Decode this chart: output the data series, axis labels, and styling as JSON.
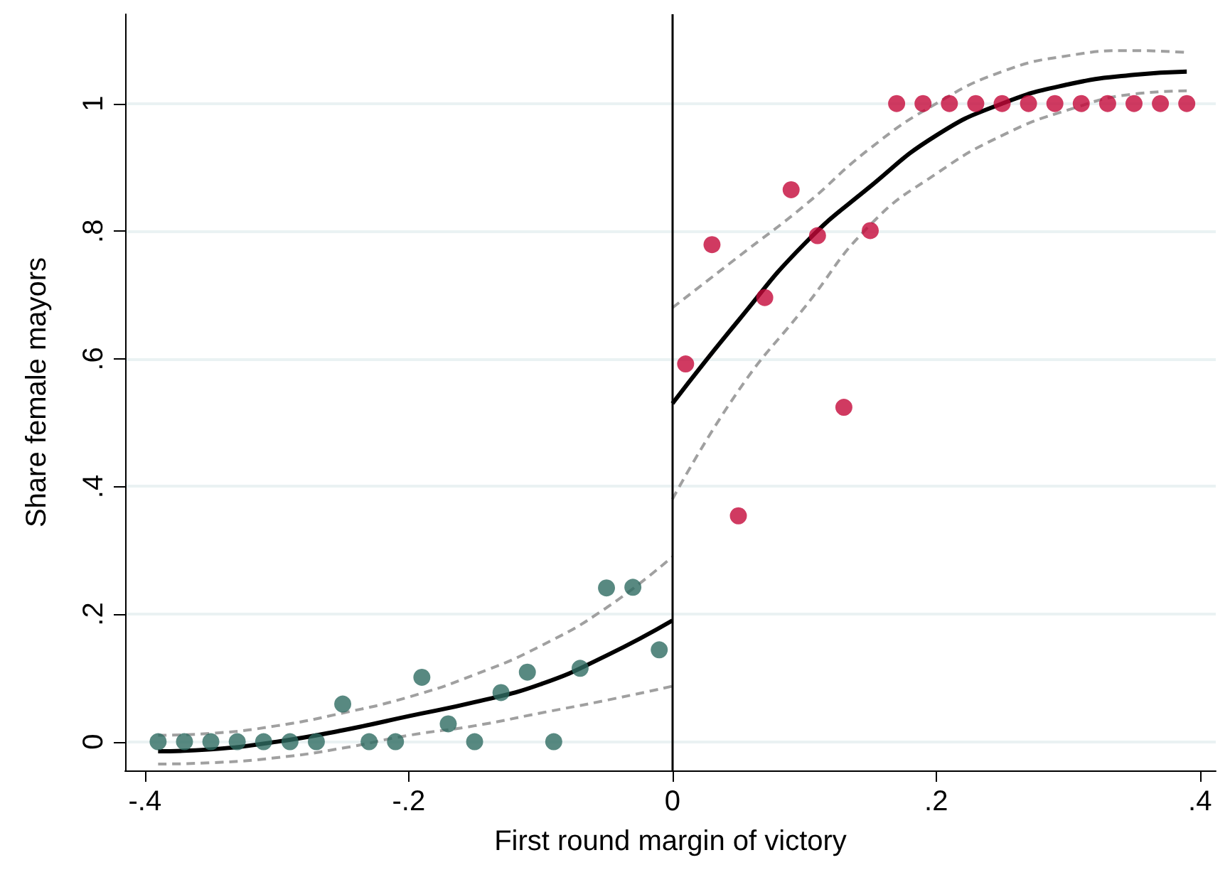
{
  "chart_data": {
    "type": "scatter",
    "xlabel": "First round margin of victory",
    "ylabel": "Share female mayors",
    "xlim": [
      -0.415,
      0.412
    ],
    "xticks": [
      {
        "value": -0.4,
        "label": "-.4"
      },
      {
        "value": -0.2,
        "label": "-.2"
      },
      0,
      {
        "value": 0.2,
        "label": ".2"
      },
      {
        "value": 0.4,
        "label": ".4"
      }
    ],
    "ylim": [
      -0.045,
      1.14
    ],
    "yticks": [
      0,
      {
        "value": 0.2,
        "label": ".2"
      },
      {
        "value": 0.4,
        "label": ".4"
      },
      {
        "value": 0.6,
        "label": ".6"
      },
      {
        "value": 0.8,
        "label": ".8"
      },
      1
    ],
    "grid": "y",
    "marker": "circle",
    "ref_lines": [
      {
        "axis": "x",
        "value": 0,
        "color": "#000000",
        "line_style": "solid"
      }
    ],
    "series": [
      {
        "color": "#2e6b62",
        "x": [
          -0.39,
          -0.37,
          -0.35,
          -0.33,
          -0.31,
          -0.29,
          -0.27,
          -0.25,
          -0.23,
          -0.21,
          -0.19,
          -0.17,
          -0.15,
          -0.13,
          -0.11,
          -0.09,
          -0.07,
          -0.05,
          -0.03,
          -0.01
        ],
        "values": [
          0,
          0,
          0,
          0,
          0,
          0,
          0,
          0.059,
          0,
          0,
          0.101,
          0.028,
          0,
          0.077,
          0.109,
          0,
          0.115,
          0.241,
          0.242,
          0.144
        ]
      },
      {
        "color": "#c4093a",
        "x": [
          0.01,
          0.03,
          0.05,
          0.07,
          0.09,
          0.11,
          0.13,
          0.15,
          0.17,
          0.19,
          0.21,
          0.23,
          0.25,
          0.27,
          0.29,
          0.31,
          0.33,
          0.35,
          0.37,
          0.39
        ],
        "values": [
          0.592,
          0.779,
          0.354,
          0.696,
          0.865,
          0.793,
          0.524,
          0.801,
          1,
          1,
          1,
          1,
          1,
          1,
          1,
          1,
          1,
          1,
          1,
          1
        ]
      },
      {
        "type": "line",
        "color": "#000000",
        "line_style": "solid",
        "marker": "none",
        "x": [
          -0.39,
          -0.35,
          -0.3,
          -0.25,
          -0.2,
          -0.15,
          -0.1,
          -0.05,
          0
        ],
        "values": [
          -0.015,
          -0.012,
          0.0,
          0.018,
          0.04,
          0.062,
          0.09,
          0.135,
          0.19
        ]
      },
      {
        "type": "line",
        "color": "#a0a0a0",
        "line_style": "dashed",
        "marker": "none",
        "x": [
          -0.39,
          -0.35,
          -0.3,
          -0.25,
          -0.2,
          -0.15,
          -0.1,
          -0.05,
          0
        ],
        "values": [
          0.01,
          0.013,
          0.025,
          0.045,
          0.07,
          0.105,
          0.15,
          0.21,
          0.29
        ]
      },
      {
        "type": "line",
        "color": "#a0a0a0",
        "line_style": "dashed",
        "marker": "none",
        "x": [
          -0.39,
          -0.35,
          -0.3,
          -0.25,
          -0.2,
          -0.15,
          -0.1,
          -0.05,
          0
        ],
        "values": [
          -0.035,
          -0.033,
          -0.025,
          -0.01,
          0.01,
          0.025,
          0.045,
          0.065,
          0.087
        ]
      },
      {
        "type": "line",
        "color": "#000000",
        "line_style": "solid",
        "marker": "none",
        "x": [
          0,
          0.05,
          0.1,
          0.15,
          0.2,
          0.25,
          0.3,
          0.35,
          0.39
        ],
        "values": [
          0.53,
          0.66,
          0.78,
          0.87,
          0.95,
          1.0,
          1.03,
          1.045,
          1.05
        ]
      },
      {
        "type": "line",
        "color": "#a0a0a0",
        "line_style": "dashed",
        "marker": "none",
        "x": [
          0,
          0.05,
          0.1,
          0.15,
          0.2,
          0.25,
          0.3,
          0.35,
          0.39
        ],
        "values": [
          0.68,
          0.76,
          0.84,
          0.93,
          1.0,
          1.05,
          1.075,
          1.083,
          1.08
        ]
      },
      {
        "type": "line",
        "color": "#a0a0a0",
        "line_style": "dashed",
        "marker": "none",
        "x": [
          0,
          0.05,
          0.1,
          0.15,
          0.2,
          0.25,
          0.3,
          0.35,
          0.39
        ],
        "values": [
          0.38,
          0.55,
          0.68,
          0.81,
          0.89,
          0.95,
          0.99,
          1.015,
          1.02
        ]
      }
    ]
  }
}
